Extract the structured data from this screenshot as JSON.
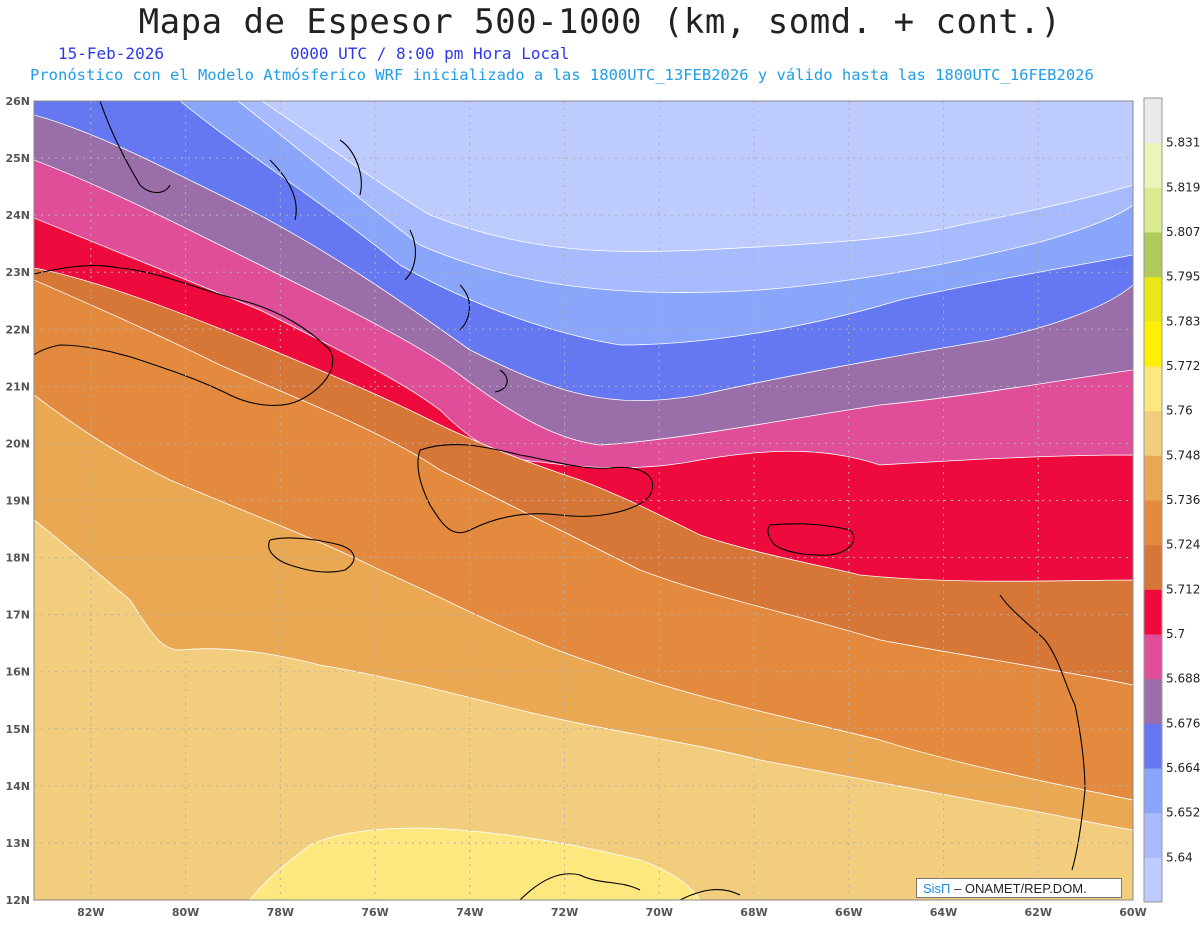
{
  "header": {
    "title": "Mapa de Espesor 500-1000 (km, somd. + cont.)",
    "date": "15-Feb-2026",
    "time": "0000 UTC / 8:00 pm Hora Local",
    "info": "Pronóstico con el Modelo Atmósferico WRF inicializado a las 1800UTC_13FEB2026 y válido hasta las  1800UTC_16FEB2026"
  },
  "map": {
    "lat_ticks": [
      "26N",
      "25N",
      "24N",
      "23N",
      "22N",
      "21N",
      "20N",
      "19N",
      "18N",
      "17N",
      "16N",
      "15N",
      "14N",
      "13N",
      "12N"
    ],
    "lon_ticks": [
      "82W",
      "80W",
      "78W",
      "76W",
      "74W",
      "72W",
      "70W",
      "68W",
      "66W",
      "64W",
      "62W",
      "60W"
    ],
    "lat_range": [
      12,
      26
    ],
    "lon_range": [
      -83.2,
      -60
    ]
  },
  "colorbar": {
    "labels": [
      "5.64",
      "5.652",
      "5.664",
      "5.676",
      "5.688",
      "5.7",
      "5.712",
      "5.724",
      "5.736",
      "5.748",
      "5.76",
      "5.772",
      "5.783",
      "5.795",
      "5.807",
      "5.819",
      "5.831"
    ],
    "colors": [
      "#bdcbff",
      "#a9bbff",
      "#8aa6fa",
      "#6578f2",
      "#9a6ea8",
      "#e04e9a",
      "#ef0a3d",
      "#d77737",
      "#e48a3e",
      "#eaa853",
      "#f2cd7e",
      "#fde77f",
      "#ffef00",
      "#e9e715",
      "#b0ca5c",
      "#d8eb8f",
      "#eef3ba",
      "#e9e9e9"
    ]
  },
  "credit": {
    "brand": "SisΠ",
    "org": "– ONAMET/REP.DOM."
  }
}
